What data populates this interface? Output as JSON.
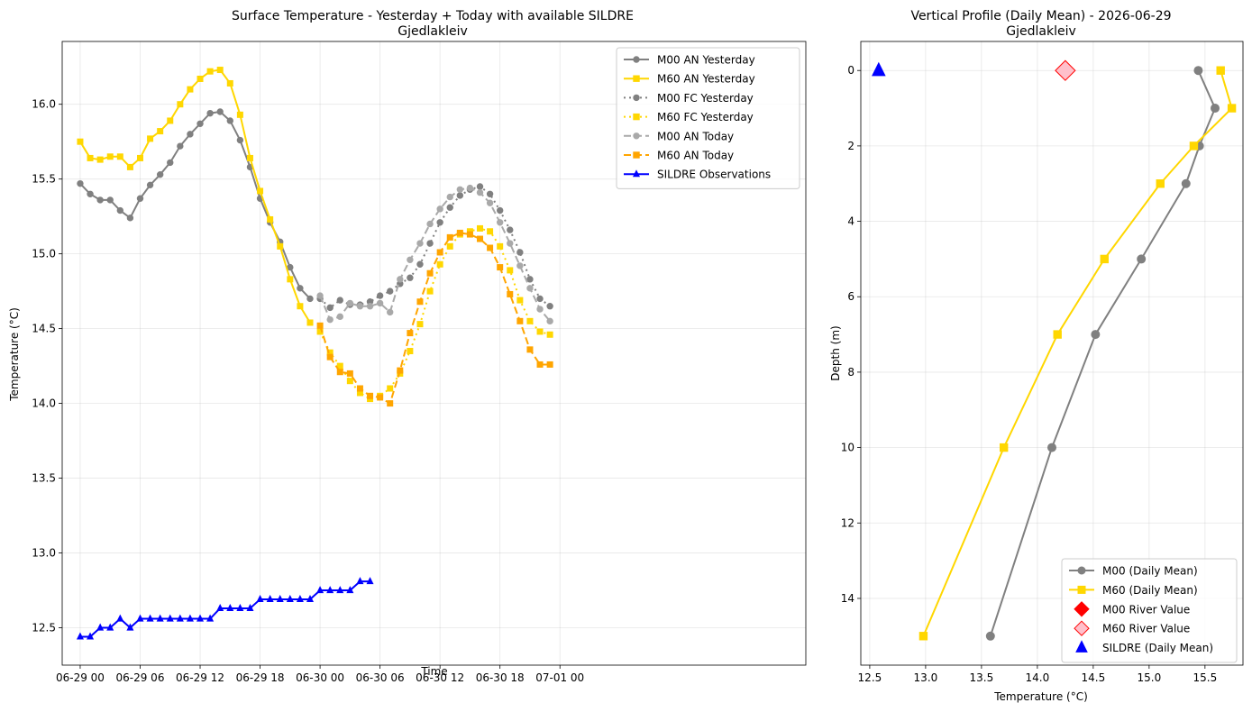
{
  "chart_data": [
    {
      "type": "line",
      "title": "Surface Temperature - Yesterday + Today with available SILDRE",
      "subtitle": "Gjedlakleiv",
      "xlabel": "Time",
      "ylabel": "Temperature (°C)",
      "xlim": [
        -1.8,
        72.6
      ],
      "ylim": [
        12.25,
        16.42
      ],
      "xticks": [
        {
          "x": 0,
          "label": "06-29 00"
        },
        {
          "x": 6,
          "label": "06-29 06"
        },
        {
          "x": 12,
          "label": "06-29 12"
        },
        {
          "x": 18,
          "label": "06-29 18"
        },
        {
          "x": 24,
          "label": "06-30 00"
        },
        {
          "x": 30,
          "label": "06-30 06"
        },
        {
          "x": 36,
          "label": "06-30 12"
        },
        {
          "x": 42,
          "label": "06-30 18"
        },
        {
          "x": 48,
          "label": "07-01 00"
        }
      ],
      "yticks": [
        12.5,
        13.0,
        13.5,
        14.0,
        14.5,
        15.0,
        15.5,
        16.0
      ],
      "grid": true,
      "legend_position": "top-right",
      "series": [
        {
          "name": "M00 AN Yesterday",
          "color": "#808080",
          "dash": "solid",
          "marker": "circle",
          "width": 2,
          "x": [
            0,
            1,
            2,
            3,
            4,
            5,
            6,
            7,
            8,
            9,
            10,
            11,
            12,
            13,
            14,
            15,
            16,
            17,
            18,
            19,
            20,
            21,
            22,
            23
          ],
          "y": [
            15.47,
            15.4,
            15.36,
            15.36,
            15.29,
            15.24,
            15.37,
            15.46,
            15.53,
            15.61,
            15.72,
            15.8,
            15.87,
            15.94,
            15.95,
            15.89,
            15.76,
            15.58,
            15.37,
            15.21,
            15.08,
            14.91,
            14.77,
            14.7
          ]
        },
        {
          "name": "M60 AN Yesterday",
          "color": "#FFD700",
          "dash": "solid",
          "marker": "square",
          "width": 2,
          "x": [
            0,
            1,
            2,
            3,
            4,
            5,
            6,
            7,
            8,
            9,
            10,
            11,
            12,
            13,
            14,
            15,
            16,
            17,
            18,
            19,
            20,
            21,
            22,
            23
          ],
          "y": [
            15.75,
            15.64,
            15.63,
            15.65,
            15.65,
            15.58,
            15.64,
            15.77,
            15.82,
            15.89,
            16.0,
            16.1,
            16.17,
            16.22,
            16.23,
            16.14,
            15.93,
            15.64,
            15.42,
            15.23,
            15.05,
            14.83,
            14.65,
            14.54
          ]
        },
        {
          "name": "M00 FC Yesterday",
          "color": "#808080",
          "dash": "dotted",
          "marker": "circle",
          "width": 2,
          "x": [
            24,
            25,
            26,
            27,
            28,
            29,
            30,
            31,
            32,
            33,
            34,
            35,
            36,
            37,
            38,
            39,
            40,
            41,
            42,
            43,
            44,
            45,
            46,
            47
          ],
          "y": [
            14.7,
            14.64,
            14.69,
            14.66,
            14.66,
            14.68,
            14.72,
            14.75,
            14.8,
            14.84,
            14.93,
            15.07,
            15.21,
            15.31,
            15.39,
            15.43,
            15.45,
            15.4,
            15.29,
            15.16,
            15.01,
            14.83,
            14.7,
            14.65
          ]
        },
        {
          "name": "M60 FC Yesterday",
          "color": "#FFD700",
          "dash": "dotted",
          "marker": "square",
          "width": 2,
          "x": [
            24,
            25,
            26,
            27,
            28,
            29,
            30,
            31,
            32,
            33,
            34,
            35,
            36,
            37,
            38,
            39,
            40,
            41,
            42,
            43,
            44,
            45,
            46,
            47
          ],
          "y": [
            14.48,
            14.34,
            14.25,
            14.15,
            14.07,
            14.03,
            14.05,
            14.1,
            14.2,
            14.35,
            14.53,
            14.75,
            14.93,
            15.05,
            15.13,
            15.15,
            15.17,
            15.15,
            15.05,
            14.89,
            14.69,
            14.55,
            14.48,
            14.46
          ]
        },
        {
          "name": "M00 AN Today",
          "color": "#A9A9A9",
          "dash": "dashed",
          "marker": "circle",
          "width": 2,
          "x": [
            24,
            25,
            26,
            27,
            28,
            29,
            30,
            31,
            32,
            33,
            34,
            35,
            36,
            37,
            38,
            39,
            40,
            41,
            42,
            43,
            44,
            45,
            46,
            47
          ],
          "y": [
            14.72,
            14.56,
            14.58,
            14.67,
            14.65,
            14.65,
            14.67,
            14.61,
            14.83,
            14.96,
            15.07,
            15.2,
            15.3,
            15.38,
            15.43,
            15.44,
            15.41,
            15.34,
            15.21,
            15.07,
            14.92,
            14.77,
            14.63,
            14.55
          ]
        },
        {
          "name": "M60 AN Today",
          "color": "#FFA500",
          "dash": "dashed",
          "marker": "square",
          "width": 2,
          "x": [
            24,
            25,
            26,
            27,
            28,
            29,
            30,
            31,
            32,
            33,
            34,
            35,
            36,
            37,
            38,
            39,
            40,
            41,
            42,
            43,
            44,
            45,
            46,
            47
          ],
          "y": [
            14.52,
            14.31,
            14.21,
            14.2,
            14.1,
            14.05,
            14.04,
            14.0,
            14.22,
            14.47,
            14.68,
            14.87,
            15.01,
            15.11,
            15.14,
            15.13,
            15.1,
            15.04,
            14.91,
            14.73,
            14.55,
            14.36,
            14.26,
            14.26
          ]
        },
        {
          "name": "SILDRE Observations",
          "color": "#0000FF",
          "dash": "solid",
          "marker": "triangle",
          "width": 2,
          "x": [
            0,
            1,
            2,
            3,
            4,
            5,
            6,
            7,
            8,
            9,
            10,
            11,
            12,
            13,
            14,
            15,
            16,
            17,
            18,
            19,
            20,
            21,
            22,
            23,
            24,
            25,
            26,
            27,
            28,
            29
          ],
          "y": [
            12.44,
            12.44,
            12.5,
            12.5,
            12.56,
            12.5,
            12.56,
            12.56,
            12.56,
            12.56,
            12.56,
            12.56,
            12.56,
            12.56,
            12.63,
            12.63,
            12.63,
            12.63,
            12.69,
            12.69,
            12.69,
            12.69,
            12.69,
            12.69,
            12.75,
            12.75,
            12.75,
            12.75,
            12.81,
            12.81
          ]
        }
      ]
    },
    {
      "type": "line",
      "title": "Vertical Profile (Daily Mean) - 2026-06-29",
      "subtitle": "Gjedlakleiv",
      "xlabel": "Temperature (°C)",
      "ylabel": "Depth (m)",
      "xlim": [
        12.42,
        15.84
      ],
      "ylim": [
        15.77,
        -0.77
      ],
      "y_inverted": true,
      "xticks": [
        12.5,
        13.0,
        13.5,
        14.0,
        14.5,
        15.0,
        15.5
      ],
      "xtick_labels": [
        "12.5",
        "13.0",
        "13.5",
        "14.0",
        "14.5",
        "15.0",
        "15.5"
      ],
      "yticks": [
        0,
        2,
        4,
        6,
        8,
        10,
        12,
        14
      ],
      "grid": true,
      "legend_position": "bottom-right",
      "series": [
        {
          "name": "M00 (Daily Mean)",
          "color": "#808080",
          "marker": "circle",
          "temperature": [
            15.44,
            15.59,
            15.45,
            15.33,
            14.93,
            14.52,
            14.13,
            13.58
          ],
          "depth": [
            0,
            1,
            2,
            3,
            5,
            7,
            10,
            15
          ]
        },
        {
          "name": "M60 (Daily Mean)",
          "color": "#FFD700",
          "marker": "square",
          "temperature": [
            15.64,
            15.74,
            15.4,
            15.1,
            14.6,
            14.18,
            13.7,
            12.98
          ],
          "depth": [
            0,
            1,
            2,
            3,
            5,
            7,
            10,
            15
          ]
        }
      ],
      "points": [
        {
          "name": "M00 River Value",
          "color": "#FF0000",
          "marker": "diamond",
          "temperature": 14.25,
          "depth": 0,
          "show_on_plot": false
        },
        {
          "name": "M60 River Value",
          "color": "#FFC0CB",
          "edge": "#FF0000",
          "marker": "diamond",
          "temperature": 14.25,
          "depth": 0,
          "show_on_plot": true
        },
        {
          "name": "SILDRE (Daily Mean)",
          "color": "#0000FF",
          "marker": "triangle",
          "temperature": 12.58,
          "depth": 0,
          "show_on_plot": true
        }
      ]
    }
  ]
}
